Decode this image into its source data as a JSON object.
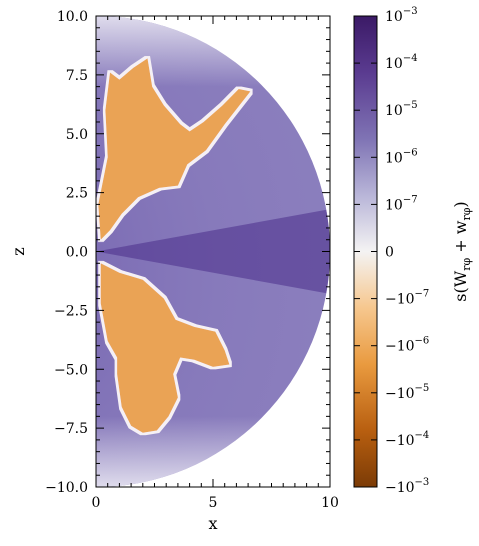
{
  "chart_data": {
    "type": "heatmap",
    "description_geometry": "half-disk of radius 10 in the x-z meridional plane (x from 0 to 10, z from -10 to 10)",
    "xlabel": "x",
    "ylabel": "z",
    "xlim": [
      0,
      10
    ],
    "ylim": [
      -10,
      10
    ],
    "x_ticks": [
      {
        "value": 0,
        "label": "0"
      },
      {
        "value": 5,
        "label": "5"
      },
      {
        "value": 10,
        "label": "10"
      }
    ],
    "y_ticks": [
      {
        "value": 10,
        "label": "10.0"
      },
      {
        "value": 7.5,
        "label": "7.5"
      },
      {
        "value": 5,
        "label": "5.0"
      },
      {
        "value": 2.5,
        "label": "2.5"
      },
      {
        "value": 0,
        "label": "0.0"
      },
      {
        "value": -2.5,
        "label": "−2.5"
      },
      {
        "value": -5,
        "label": "−5.0"
      },
      {
        "value": -7.5,
        "label": "−7.5"
      },
      {
        "value": -10,
        "label": "−10.0"
      }
    ],
    "colorbar": {
      "label": "s(W_rφ + w_rφ)",
      "label_parts": {
        "func": "s(W",
        "sub1": "rφ",
        "plus": " + w",
        "sub2": "rφ",
        "close": ")"
      },
      "scale": "symlog",
      "positive_color": "#3f1e6b",
      "negative_color": "#8a4006",
      "zero_color": "#f2f2f5",
      "ticks": [
        {
          "sign": "",
          "base": "10",
          "exp": "−3"
        },
        {
          "sign": "",
          "base": "10",
          "exp": "−4"
        },
        {
          "sign": "",
          "base": "10",
          "exp": "−5"
        },
        {
          "sign": "",
          "base": "10",
          "exp": "−6"
        },
        {
          "sign": "",
          "base": "10",
          "exp": "−7"
        },
        {
          "sign": "",
          "base": "0",
          "exp": ""
        },
        {
          "sign": "−",
          "base": "10",
          "exp": "−7"
        },
        {
          "sign": "−",
          "base": "10",
          "exp": "−6"
        },
        {
          "sign": "−",
          "base": "10",
          "exp": "−5"
        },
        {
          "sign": "−",
          "base": "10",
          "exp": "−4"
        },
        {
          "sign": "−",
          "base": "10",
          "exp": "−3"
        }
      ]
    },
    "regions": [
      {
        "name": "positive-background",
        "sign": "positive",
        "color": "#8a7dbd"
      },
      {
        "name": "negative-upper-lobe",
        "sign": "negative",
        "color": "#eaa355",
        "outline": [
          [
            0.1,
            2
          ],
          [
            0.5,
            4
          ],
          [
            0.4,
            6
          ],
          [
            0.6,
            7.6
          ],
          [
            1,
            7.3
          ],
          [
            1.6,
            7.8
          ],
          [
            2.2,
            8.2
          ],
          [
            2.4,
            7
          ],
          [
            2.9,
            6.2
          ],
          [
            3.6,
            5.4
          ],
          [
            4,
            5.1
          ],
          [
            4.6,
            5.5
          ],
          [
            5.4,
            6.2
          ],
          [
            6.1,
            6.9
          ],
          [
            6.6,
            6.8
          ],
          [
            5.5,
            5.4
          ],
          [
            4.7,
            4.3
          ],
          [
            3.9,
            3.7
          ],
          [
            3.5,
            2.8
          ],
          [
            2.7,
            2.7
          ],
          [
            1.8,
            2.3
          ],
          [
            1.1,
            1.6
          ],
          [
            0.6,
            0.9
          ],
          [
            0.2,
            0.5
          ]
        ]
      },
      {
        "name": "negative-lower-lobe",
        "sign": "negative",
        "color": "#eaa355",
        "outline": [
          [
            0.2,
            -0.5
          ],
          [
            1,
            -0.9
          ],
          [
            2,
            -1.2
          ],
          [
            2.9,
            -2
          ],
          [
            3.4,
            -2.9
          ],
          [
            4.2,
            -3.2
          ],
          [
            5.1,
            -3.4
          ],
          [
            5.5,
            -4.2
          ],
          [
            5.7,
            -4.8
          ],
          [
            5,
            -4.9
          ],
          [
            4.2,
            -4.6
          ],
          [
            3.6,
            -4.5
          ],
          [
            3.3,
            -5.2
          ],
          [
            3.5,
            -6.2
          ],
          [
            3.1,
            -7
          ],
          [
            2.6,
            -7.6
          ],
          [
            2,
            -7.7
          ],
          [
            1.5,
            -7.4
          ],
          [
            1.1,
            -6.6
          ],
          [
            0.9,
            -5.2
          ],
          [
            0.9,
            -4.5
          ],
          [
            0.5,
            -3.8
          ],
          [
            0.2,
            -2.2
          ]
        ]
      }
    ]
  }
}
